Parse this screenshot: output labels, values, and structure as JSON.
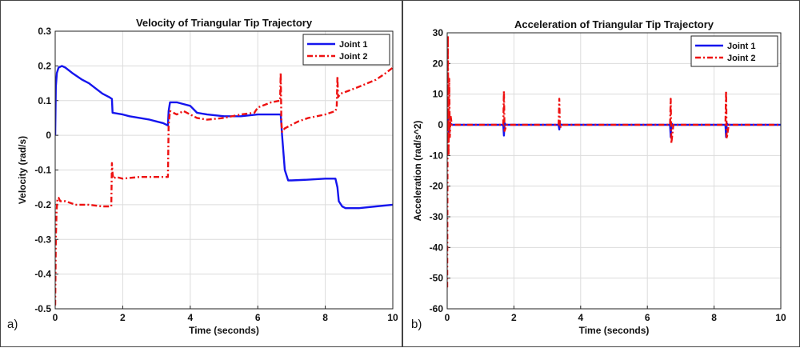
{
  "colors": {
    "joint1": "#1515ee",
    "joint2": "#ee1111",
    "grid": "#dcdcdc",
    "axis": "#222222"
  },
  "chart_data": [
    {
      "type": "line",
      "panel_label": "a)",
      "title": "Velocity of Triangular Tip Trajectory",
      "xlabel": "Time (seconds)",
      "ylabel": "Velocity (rad/s)",
      "xlim": [
        0,
        10
      ],
      "ylim": [
        -0.5,
        0.3
      ],
      "xticks": [
        0,
        2,
        4,
        6,
        8,
        10
      ],
      "yticks": [
        -0.5,
        -0.4,
        -0.3,
        -0.2,
        -0.1,
        0,
        0.1,
        0.2,
        0.3
      ],
      "grid": true,
      "legend": "top-right",
      "series": [
        {
          "name": "Joint 1",
          "style": "solid",
          "x": [
            0,
            0.02,
            0.05,
            0.1,
            0.2,
            0.3,
            0.5,
            0.8,
            1.0,
            1.2,
            1.4,
            1.6,
            1.68,
            1.7,
            2.0,
            2.2,
            2.5,
            2.8,
            3.0,
            3.2,
            3.3,
            3.34,
            3.36,
            3.4,
            3.6,
            3.8,
            4.0,
            4.2,
            4.5,
            5.0,
            5.5,
            6.0,
            6.5,
            6.68,
            6.72,
            6.8,
            6.9,
            7.0,
            7.5,
            8.0,
            8.3,
            8.36,
            8.4,
            8.5,
            8.6,
            9.0,
            9.5,
            10.0
          ],
          "y": [
            0.0,
            0.14,
            0.18,
            0.195,
            0.2,
            0.195,
            0.18,
            0.16,
            0.15,
            0.135,
            0.12,
            0.11,
            0.105,
            0.065,
            0.06,
            0.055,
            0.05,
            0.045,
            0.04,
            0.035,
            0.03,
            0.028,
            0.07,
            0.095,
            0.095,
            0.09,
            0.085,
            0.065,
            0.06,
            0.055,
            0.055,
            0.06,
            0.06,
            0.06,
            0.0,
            -0.1,
            -0.13,
            -0.13,
            -0.128,
            -0.125,
            -0.125,
            -0.15,
            -0.19,
            -0.205,
            -0.21,
            -0.21,
            -0.205,
            -0.2
          ]
        },
        {
          "name": "Joint 2",
          "style": "dashed",
          "x": [
            0,
            0.01,
            0.02,
            0.04,
            0.06,
            0.08,
            0.1,
            0.15,
            0.3,
            0.6,
            1.0,
            1.4,
            1.66,
            1.68,
            1.7,
            1.72,
            1.8,
            2.0,
            2.5,
            3.0,
            3.3,
            3.34,
            3.36,
            3.4,
            3.6,
            3.8,
            4.0,
            4.2,
            4.5,
            5.0,
            5.5,
            5.9,
            6.0,
            6.4,
            6.66,
            6.68,
            6.7,
            6.72,
            6.8,
            7.0,
            7.2,
            7.5,
            8.0,
            8.3,
            8.34,
            8.36,
            8.38,
            8.45,
            8.6,
            9.0,
            9.5,
            9.8,
            10.0
          ],
          "y": [
            -0.49,
            -0.4,
            -0.3,
            -0.22,
            -0.19,
            -0.18,
            -0.18,
            -0.19,
            -0.19,
            -0.2,
            -0.2,
            -0.205,
            -0.205,
            -0.08,
            -0.11,
            -0.125,
            -0.12,
            -0.125,
            -0.12,
            -0.12,
            -0.12,
            -0.12,
            0.03,
            0.07,
            0.06,
            0.07,
            0.06,
            0.05,
            0.045,
            0.05,
            0.06,
            0.065,
            0.08,
            0.095,
            0.1,
            0.18,
            0.04,
            0.01,
            0.02,
            0.03,
            0.04,
            0.05,
            0.06,
            0.07,
            0.08,
            0.17,
            0.11,
            0.12,
            0.125,
            0.14,
            0.16,
            0.18,
            0.195
          ]
        }
      ]
    },
    {
      "type": "line",
      "panel_label": "b)",
      "title": "Acceleration of Triangular Tip Trajectory",
      "xlabel": "Time (seconds)",
      "ylabel": "Acceleration  (rad/s^2)",
      "xlim": [
        0,
        10
      ],
      "ylim": [
        -60,
        30
      ],
      "xticks": [
        0,
        2,
        4,
        6,
        8,
        10
      ],
      "yticks": [
        -60,
        -50,
        -40,
        -30,
        -20,
        -10,
        0,
        10,
        20,
        30
      ],
      "grid": true,
      "legend": "top-right",
      "series": [
        {
          "name": "Joint 1",
          "style": "solid",
          "x": [
            0,
            0.03,
            0.05,
            0.08,
            0.15,
            1.68,
            1.7,
            1.72,
            1.76,
            3.34,
            3.36,
            3.38,
            3.42,
            6.68,
            6.7,
            6.72,
            6.76,
            8.34,
            8.36,
            8.38,
            8.42,
            10.0
          ],
          "y": [
            0,
            5,
            -3,
            0.5,
            0,
            0,
            -3.5,
            0.5,
            0,
            0,
            -1.5,
            0.3,
            0,
            0,
            -4,
            0.5,
            0,
            0,
            -4,
            0.5,
            0,
            0
          ]
        },
        {
          "name": "Joint 2",
          "style": "dashed",
          "x": [
            0,
            0.02,
            0.04,
            0.06,
            0.08,
            0.1,
            0.14,
            0.2,
            1.68,
            1.7,
            1.72,
            1.78,
            3.34,
            3.36,
            3.38,
            3.44,
            6.68,
            6.7,
            6.72,
            6.78,
            8.34,
            8.36,
            8.38,
            8.44,
            10.0
          ],
          "y": [
            -53,
            29,
            -10,
            15,
            -4,
            3,
            0,
            0,
            0,
            11,
            -2,
            0,
            0,
            8.5,
            -1,
            0,
            0,
            8.5,
            -6,
            0,
            0,
            11,
            -4.5,
            0,
            0
          ]
        }
      ]
    }
  ]
}
